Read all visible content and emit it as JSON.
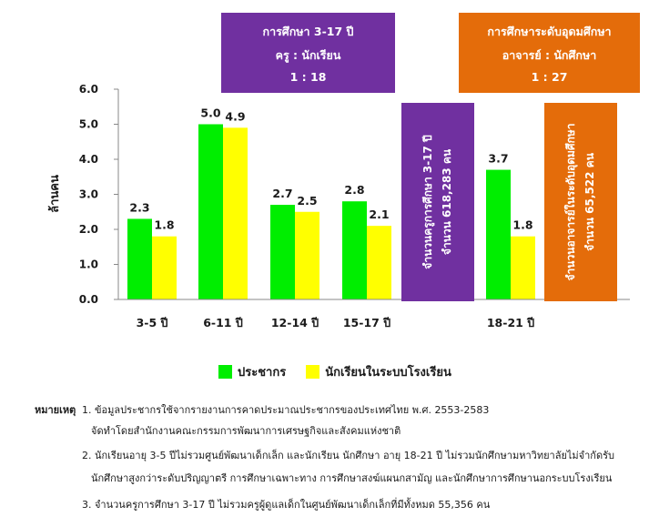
{
  "chart_data": {
    "type": "bar",
    "ylabel": "ล้านคน",
    "ylim": [
      0,
      6
    ],
    "yticks": [
      "0.0",
      "1.0",
      "2.0",
      "3.0",
      "4.0",
      "5.0",
      "6.0"
    ],
    "categories": [
      "3-5 ปี",
      "6-11 ปี",
      "12-14 ปี",
      "15-17 ปี",
      "18-21 ปี"
    ],
    "series": [
      {
        "name": "ประชากร",
        "color": "#00ee00",
        "values": [
          2.3,
          5.0,
          2.7,
          2.8,
          3.7
        ],
        "labels": [
          "2.3",
          "5.0",
          "2.7",
          "2.8",
          "3.7"
        ]
      },
      {
        "name": "นักเรียนในระบบโรงเรียน",
        "color": "#ffff00",
        "values": [
          1.8,
          4.9,
          2.5,
          2.1,
          1.8
        ],
        "labels": [
          "1.8",
          "4.9",
          "2.5",
          "2.1",
          "1.8"
        ]
      }
    ],
    "legend_position": "bottom",
    "grid": false
  },
  "ratio_boxes": {
    "basic": {
      "line1": "การศึกษา 3-17 ปี",
      "line2": "ครู : นักเรียน",
      "line3": "1 : 18",
      "color": "#7030a0"
    },
    "higher": {
      "line1": "การศึกษาระดับอุดมศึกษา",
      "line2": "อาจารย์ : นักศึกษา",
      "line3": "1 : 27",
      "color": "#e46c0a"
    }
  },
  "teacher_boxes": {
    "basic": {
      "line1": "จำนวนครูการศึกษา 3-17 ปี",
      "line2": "จำนวน 618,283 คน",
      "color": "#7030a0"
    },
    "higher": {
      "line1": "จำนวนอาจารย์ในระดับอุดมศึกษา",
      "line2": "จำนวน 65,522 คน",
      "color": "#e46c0a"
    }
  },
  "notes": {
    "heading": "หมายเหตุ",
    "items": [
      "1. ข้อมูลประชากรใช้จากรายงานการคาดประมาณประชากรของประเทศไทย พ.ศ. 2553-2583",
      "จัดทำโดยสำนักงานคณะกรรมการพัฒนาการเศรษฐกิจและสังคมแห่งชาติ",
      "2. นักเรียนอายุ 3-5 ปีไม่รวมศูนย์พัฒนาเด็กเล็ก และนักเรียน นักศึกษา อายุ 18-21 ปี ไม่รวมนักศึกษามหาวิทยาลัยไม่จำกัดรับ",
      "นักศึกษาสูงกว่าระดับปริญญาตรี การศึกษาเฉพาะทาง การศึกษาสงฆ์แผนกสามัญ และนักศึกษาการศึกษานอกระบบโรงเรียน",
      "3. จำนวนครูการศึกษา 3-17 ปี ไม่รวมครูผู้ดูแลเด็กในศูนย์พัฒนาเด็กเล็กที่มีทั้งหมด 55,356 คน"
    ]
  }
}
